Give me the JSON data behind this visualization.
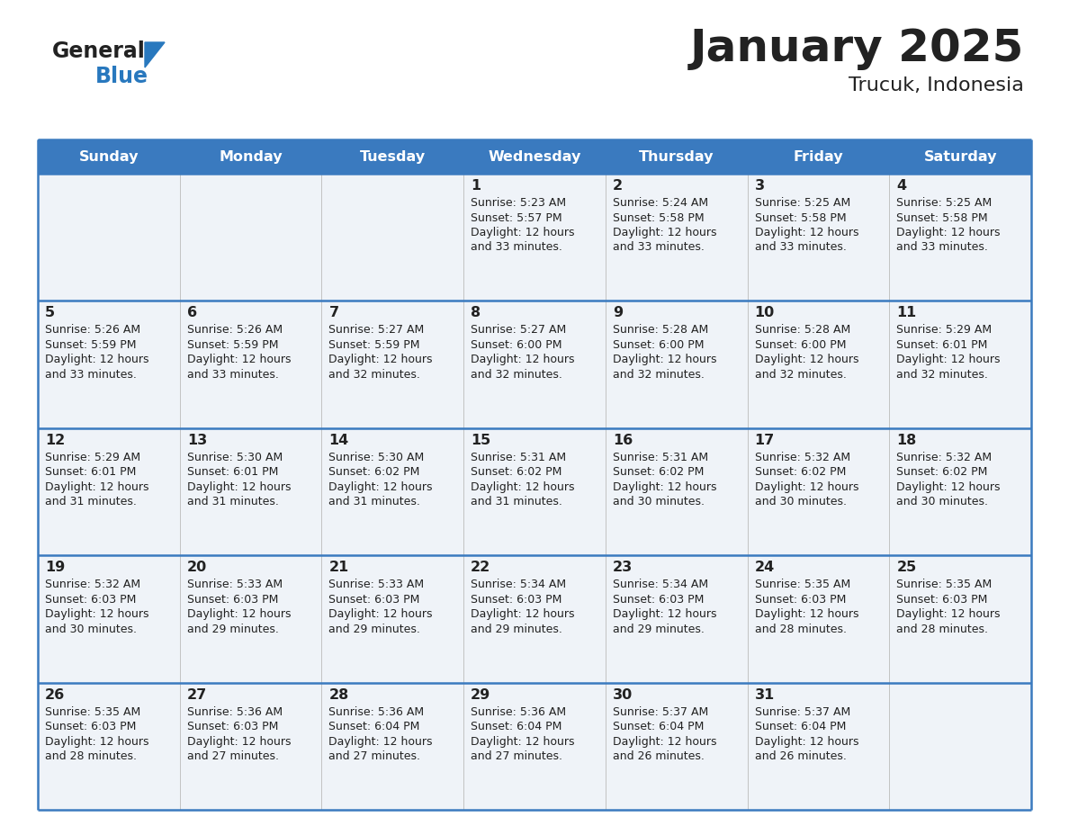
{
  "title": "January 2025",
  "subtitle": "Trucuk, Indonesia",
  "days_of_week": [
    "Sunday",
    "Monday",
    "Tuesday",
    "Wednesday",
    "Thursday",
    "Friday",
    "Saturday"
  ],
  "header_bg": "#3a7abf",
  "header_text": "#ffffff",
  "cell_bg": "#eff3f8",
  "row_line_color": "#3a7abf",
  "text_color": "#222222",
  "logo_general_color": "#222222",
  "logo_blue_color": "#2878be",
  "calendar": [
    [
      null,
      null,
      null,
      {
        "day": 1,
        "sunrise": "5:23 AM",
        "sunset": "5:57 PM",
        "daylight_h": "12 hours",
        "daylight_m": "and 33 minutes."
      },
      {
        "day": 2,
        "sunrise": "5:24 AM",
        "sunset": "5:58 PM",
        "daylight_h": "12 hours",
        "daylight_m": "and 33 minutes."
      },
      {
        "day": 3,
        "sunrise": "5:25 AM",
        "sunset": "5:58 PM",
        "daylight_h": "12 hours",
        "daylight_m": "and 33 minutes."
      },
      {
        "day": 4,
        "sunrise": "5:25 AM",
        "sunset": "5:58 PM",
        "daylight_h": "12 hours",
        "daylight_m": "and 33 minutes."
      }
    ],
    [
      {
        "day": 5,
        "sunrise": "5:26 AM",
        "sunset": "5:59 PM",
        "daylight_h": "12 hours",
        "daylight_m": "and 33 minutes."
      },
      {
        "day": 6,
        "sunrise": "5:26 AM",
        "sunset": "5:59 PM",
        "daylight_h": "12 hours",
        "daylight_m": "and 33 minutes."
      },
      {
        "day": 7,
        "sunrise": "5:27 AM",
        "sunset": "5:59 PM",
        "daylight_h": "12 hours",
        "daylight_m": "and 32 minutes."
      },
      {
        "day": 8,
        "sunrise": "5:27 AM",
        "sunset": "6:00 PM",
        "daylight_h": "12 hours",
        "daylight_m": "and 32 minutes."
      },
      {
        "day": 9,
        "sunrise": "5:28 AM",
        "sunset": "6:00 PM",
        "daylight_h": "12 hours",
        "daylight_m": "and 32 minutes."
      },
      {
        "day": 10,
        "sunrise": "5:28 AM",
        "sunset": "6:00 PM",
        "daylight_h": "12 hours",
        "daylight_m": "and 32 minutes."
      },
      {
        "day": 11,
        "sunrise": "5:29 AM",
        "sunset": "6:01 PM",
        "daylight_h": "12 hours",
        "daylight_m": "and 32 minutes."
      }
    ],
    [
      {
        "day": 12,
        "sunrise": "5:29 AM",
        "sunset": "6:01 PM",
        "daylight_h": "12 hours",
        "daylight_m": "and 31 minutes."
      },
      {
        "day": 13,
        "sunrise": "5:30 AM",
        "sunset": "6:01 PM",
        "daylight_h": "12 hours",
        "daylight_m": "and 31 minutes."
      },
      {
        "day": 14,
        "sunrise": "5:30 AM",
        "sunset": "6:02 PM",
        "daylight_h": "12 hours",
        "daylight_m": "and 31 minutes."
      },
      {
        "day": 15,
        "sunrise": "5:31 AM",
        "sunset": "6:02 PM",
        "daylight_h": "12 hours",
        "daylight_m": "and 31 minutes."
      },
      {
        "day": 16,
        "sunrise": "5:31 AM",
        "sunset": "6:02 PM",
        "daylight_h": "12 hours",
        "daylight_m": "and 30 minutes."
      },
      {
        "day": 17,
        "sunrise": "5:32 AM",
        "sunset": "6:02 PM",
        "daylight_h": "12 hours",
        "daylight_m": "and 30 minutes."
      },
      {
        "day": 18,
        "sunrise": "5:32 AM",
        "sunset": "6:02 PM",
        "daylight_h": "12 hours",
        "daylight_m": "and 30 minutes."
      }
    ],
    [
      {
        "day": 19,
        "sunrise": "5:32 AM",
        "sunset": "6:03 PM",
        "daylight_h": "12 hours",
        "daylight_m": "and 30 minutes."
      },
      {
        "day": 20,
        "sunrise": "5:33 AM",
        "sunset": "6:03 PM",
        "daylight_h": "12 hours",
        "daylight_m": "and 29 minutes."
      },
      {
        "day": 21,
        "sunrise": "5:33 AM",
        "sunset": "6:03 PM",
        "daylight_h": "12 hours",
        "daylight_m": "and 29 minutes."
      },
      {
        "day": 22,
        "sunrise": "5:34 AM",
        "sunset": "6:03 PM",
        "daylight_h": "12 hours",
        "daylight_m": "and 29 minutes."
      },
      {
        "day": 23,
        "sunrise": "5:34 AM",
        "sunset": "6:03 PM",
        "daylight_h": "12 hours",
        "daylight_m": "and 29 minutes."
      },
      {
        "day": 24,
        "sunrise": "5:35 AM",
        "sunset": "6:03 PM",
        "daylight_h": "12 hours",
        "daylight_m": "and 28 minutes."
      },
      {
        "day": 25,
        "sunrise": "5:35 AM",
        "sunset": "6:03 PM",
        "daylight_h": "12 hours",
        "daylight_m": "and 28 minutes."
      }
    ],
    [
      {
        "day": 26,
        "sunrise": "5:35 AM",
        "sunset": "6:03 PM",
        "daylight_h": "12 hours",
        "daylight_m": "and 28 minutes."
      },
      {
        "day": 27,
        "sunrise": "5:36 AM",
        "sunset": "6:03 PM",
        "daylight_h": "12 hours",
        "daylight_m": "and 27 minutes."
      },
      {
        "day": 28,
        "sunrise": "5:36 AM",
        "sunset": "6:04 PM",
        "daylight_h": "12 hours",
        "daylight_m": "and 27 minutes."
      },
      {
        "day": 29,
        "sunrise": "5:36 AM",
        "sunset": "6:04 PM",
        "daylight_h": "12 hours",
        "daylight_m": "and 27 minutes."
      },
      {
        "day": 30,
        "sunrise": "5:37 AM",
        "sunset": "6:04 PM",
        "daylight_h": "12 hours",
        "daylight_m": "and 26 minutes."
      },
      {
        "day": 31,
        "sunrise": "5:37 AM",
        "sunset": "6:04 PM",
        "daylight_h": "12 hours",
        "daylight_m": "and 26 minutes."
      },
      null
    ]
  ]
}
